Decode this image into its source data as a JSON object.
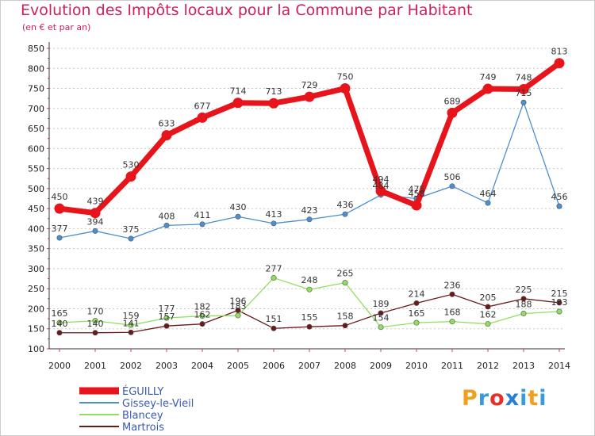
{
  "title": "Evolution des Impôts locaux pour la Commune par Habitant",
  "subtitle": "(en € et par an)",
  "logo": {
    "text": "Proxiti",
    "letter_colors": [
      "#f0a020",
      "#3a9ad8",
      "#e8302a",
      "#2a7fd0",
      "#3a9ad8",
      "#f0a020",
      "#3a9ad8"
    ]
  },
  "chart_data": {
    "type": "line",
    "title": "Evolution des Impôts locaux pour la Commune par Habitant",
    "subtitle": "(en € et par an)",
    "xlabel": "",
    "ylabel": "",
    "x": [
      "2000",
      "2001",
      "2002",
      "2003",
      "2004",
      "2005",
      "2006",
      "2007",
      "2008",
      "2009",
      "2010",
      "2011",
      "2012",
      "2013",
      "2014"
    ],
    "ylim": [
      100,
      850
    ],
    "yticks": [
      100,
      150,
      200,
      250,
      300,
      350,
      400,
      450,
      500,
      550,
      600,
      650,
      700,
      750,
      800,
      850
    ],
    "grid": "horizontal-dotted",
    "legend_position": "bottom-left",
    "series": [
      {
        "name": "ÉGUILLY",
        "color": "#e8141c",
        "values": [
          450,
          439,
          530,
          633,
          677,
          714,
          713,
          729,
          750,
          494,
          458,
          689,
          749,
          748,
          813
        ]
      },
      {
        "name": "Gissey-le-Vieil",
        "color": "#4a8fcf",
        "values": [
          377,
          394,
          375,
          408,
          411,
          430,
          413,
          423,
          436,
          484,
          475,
          506,
          464,
          715,
          456
        ]
      },
      {
        "name": "Blancey",
        "color": "#90e060",
        "values": [
          165,
          170,
          159,
          177,
          182,
          183,
          277,
          248,
          265,
          154,
          165,
          168,
          162,
          188,
          193
        ]
      },
      {
        "name": "Martrois",
        "color": "#6b1a1a",
        "values": [
          140,
          140,
          141,
          157,
          162,
          196,
          151,
          155,
          158,
          189,
          214,
          236,
          205,
          225,
          215
        ]
      }
    ]
  }
}
